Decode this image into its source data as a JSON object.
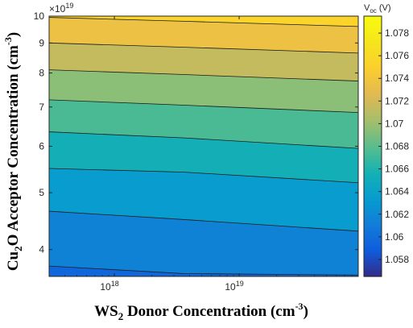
{
  "chart_data": {
    "type": "contour",
    "xlabel": {
      "base": "WS",
      "sub": "2",
      "rest": " Donor Concentration (cm",
      "sup": "-3",
      "close": ")"
    },
    "ylabel": {
      "base": "Cu",
      "sub": "2",
      "rest": "O Acceptor Concentration (cm",
      "sup": "-3",
      "close": ")"
    },
    "x_scale": "log",
    "x_range": [
      3e+17,
      9e+19
    ],
    "x_ticks": [
      {
        "value": 1e+18,
        "base": "10",
        "exp": "18"
      },
      {
        "value": 1e+19,
        "base": "10",
        "exp": "19"
      }
    ],
    "y_scale": "log",
    "y_range": [
      3.6e+19,
      1e+20
    ],
    "y_exponent_label": {
      "prefix": "×10",
      "exp": "19"
    },
    "y_ticks": [
      {
        "value": 4,
        "label": "4"
      },
      {
        "value": 5,
        "label": "5"
      },
      {
        "value": 6,
        "label": "6"
      },
      {
        "value": 7,
        "label": "7"
      },
      {
        "value": 8,
        "label": "8"
      },
      {
        "value": 9,
        "label": "9"
      },
      {
        "value": 10,
        "label": "10"
      }
    ],
    "colorbar": {
      "title": {
        "base": "V",
        "sub": "oc",
        "rest": " (V)"
      },
      "min": 1.0565,
      "max": 1.0795,
      "ticks": [
        "1.058",
        "1.06",
        "1.062",
        "1.064",
        "1.066",
        "1.068",
        "1.07",
        "1.072",
        "1.074",
        "1.076",
        "1.078"
      ]
    },
    "contour_levels": [
      1.0595,
      1.0615,
      1.0635,
      1.0655,
      1.0675,
      1.0695,
      1.0715,
      1.0735,
      1.0755,
      1.0775,
      1.0795
    ],
    "contour_lines": [
      {
        "level": 1.0615,
        "y_left": 3.75,
        "y_mid": 3.64,
        "y_right": 3.62
      },
      {
        "level": 1.0635,
        "y_left": 4.65,
        "y_mid": 4.5,
        "y_right": 4.3
      },
      {
        "level": 1.0655,
        "y_left": 5.5,
        "y_mid": 5.42,
        "y_right": 5.2
      },
      {
        "level": 1.0675,
        "y_left": 6.35,
        "y_mid": 6.2,
        "y_right": 5.95
      },
      {
        "level": 1.0695,
        "y_left": 7.2,
        "y_mid": 7.05,
        "y_right": 6.85
      },
      {
        "level": 1.0715,
        "y_left": 8.1,
        "y_mid": 7.95,
        "y_right": 7.75
      },
      {
        "level": 1.0735,
        "y_left": 9.0,
        "y_mid": 8.85,
        "y_right": 8.65
      },
      {
        "level": 1.0755,
        "y_left": 9.95,
        "y_mid": 9.8,
        "y_right": 9.6
      }
    ]
  }
}
